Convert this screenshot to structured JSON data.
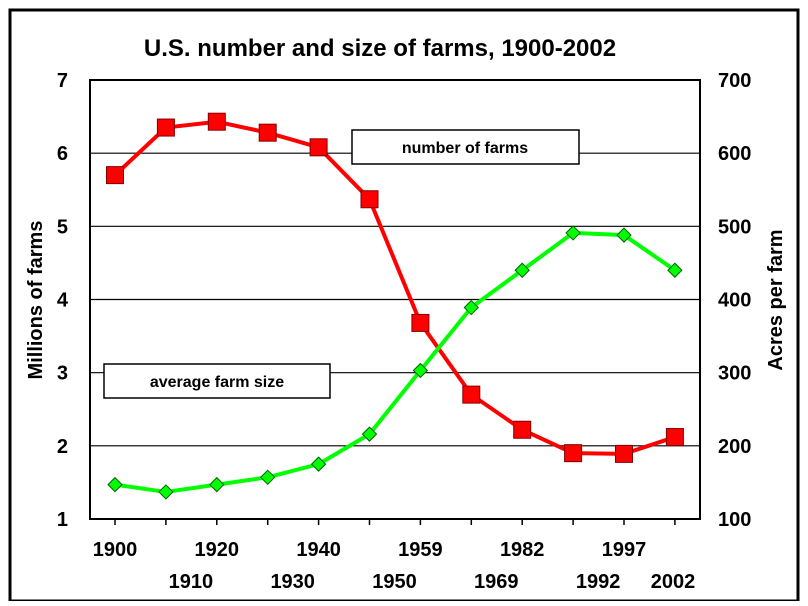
{
  "chart_data": {
    "type": "line",
    "title": "U.S. number and size of farms, 1900-2002",
    "ylabel_left": "Millions of farms",
    "ylabel_right": "Acres per farm",
    "ylim_left": [
      1,
      7
    ],
    "ylim_right": [
      100,
      700
    ],
    "yticks_left": [
      "1",
      "2",
      "3",
      "4",
      "5",
      "6",
      "7"
    ],
    "yticks_right": [
      "100",
      "200",
      "300",
      "400",
      "500",
      "600",
      "700"
    ],
    "categories": [
      "1900",
      "1910",
      "1920",
      "1930",
      "1940",
      "1950",
      "1959",
      "1969",
      "1982",
      "1992",
      "1997",
      "2002"
    ],
    "grid": true,
    "series": [
      {
        "name": "number of farms",
        "axis": "left",
        "color": "#ff0000",
        "marker": "square",
        "values": [
          5.7,
          6.35,
          6.43,
          6.28,
          6.08,
          5.37,
          3.68,
          2.7,
          2.22,
          1.9,
          1.89,
          2.12
        ]
      },
      {
        "name": "average farm size",
        "axis": "right",
        "color": "#00ff00",
        "marker": "diamond",
        "values": [
          147,
          137,
          147,
          157,
          175,
          216,
          303,
          389,
          440,
          491,
          488,
          440
        ]
      }
    ]
  }
}
